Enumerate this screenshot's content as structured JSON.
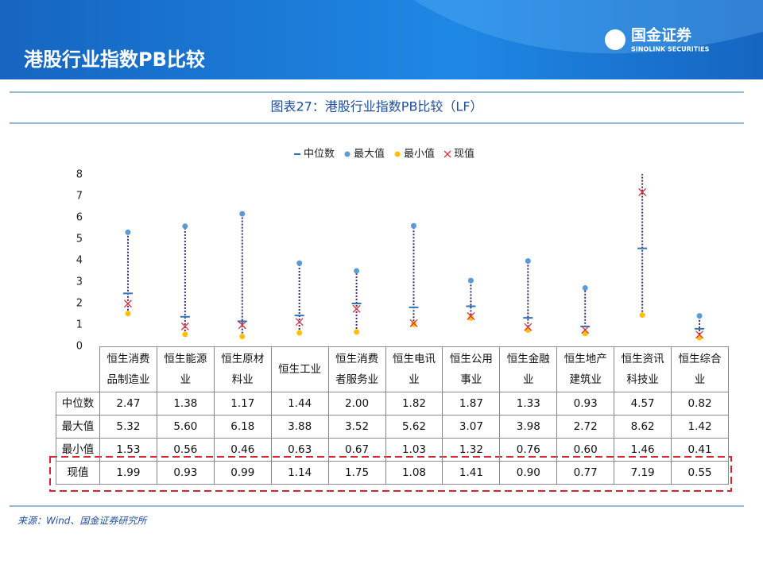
{
  "header": {
    "title": "港股行业指数PB比较",
    "logo_name": "国金证券",
    "logo_sub": "SINOLINK SECURITIES"
  },
  "chart_data": {
    "type": "range_dot",
    "title": "图表27：港股行业指数PB比较（LF）",
    "categories": [
      "恒生消费品制造业",
      "恒生能源业",
      "恒生原材料业",
      "恒生工业",
      "恒生消费者服务业",
      "恒生电讯业",
      "恒生公用事业",
      "恒生金融业",
      "恒生地产建筑业",
      "恒生资讯科技业",
      "恒生综合业"
    ],
    "series": [
      {
        "name": "中位数",
        "color": "#2e75b6",
        "marker": "dash",
        "values": [
          2.47,
          1.38,
          1.17,
          1.44,
          2.0,
          1.82,
          1.87,
          1.33,
          0.93,
          4.57,
          0.82
        ],
        "value_labels": [
          "2.47",
          "1.38",
          "1.17",
          "1.44",
          "2.00",
          "1.82",
          "1.87",
          "1.33",
          "0.93",
          "4.57",
          "0.82"
        ]
      },
      {
        "name": "最大值",
        "color": "#5b9bd5",
        "marker": "dot",
        "values": [
          5.32,
          5.6,
          6.18,
          3.88,
          3.52,
          5.62,
          3.07,
          3.98,
          2.72,
          8.62,
          1.42
        ],
        "value_labels": [
          "5.32",
          "5.60",
          "6.18",
          "3.88",
          "3.52",
          "5.62",
          "3.07",
          "3.98",
          "2.72",
          "8.62",
          "1.42"
        ]
      },
      {
        "name": "最小值",
        "color": "#ffc000",
        "marker": "dot",
        "values": [
          1.53,
          0.56,
          0.46,
          0.63,
          0.67,
          1.03,
          1.32,
          0.76,
          0.6,
          1.46,
          0.41
        ],
        "value_labels": [
          "1.53",
          "0.56",
          "0.46",
          "0.63",
          "0.67",
          "1.03",
          "1.32",
          "0.76",
          "0.60",
          "1.46",
          "0.41"
        ]
      },
      {
        "name": "现值",
        "color": "#e0303a",
        "marker": "x",
        "values": [
          1.99,
          0.93,
          0.99,
          1.14,
          1.75,
          1.08,
          1.41,
          0.9,
          0.77,
          7.19,
          0.55
        ],
        "value_labels": [
          "1.99",
          "0.93",
          "0.99",
          "1.14",
          "1.75",
          "1.08",
          "1.41",
          "0.90",
          "0.77",
          "7.19",
          "0.55"
        ]
      }
    ],
    "ylim": [
      0,
      8
    ],
    "yticks": [
      0,
      1,
      2,
      3,
      4,
      5,
      6,
      7,
      8
    ],
    "legend": "top",
    "source": "来源：Wind、国金证券研究所"
  }
}
